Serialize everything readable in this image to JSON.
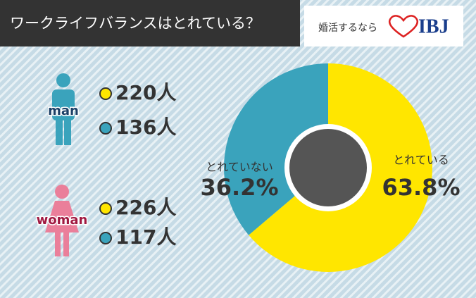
{
  "chart_data": {
    "type": "pie",
    "title": "ワークライフバランスはとれている？",
    "categories": [
      "とれている",
      "とれていない"
    ],
    "values": [
      63.8,
      36.2
    ],
    "value_labels": [
      "63.8%",
      "36.2%"
    ],
    "colors": [
      "#ffe600",
      "#3aa3bc"
    ],
    "donut": true,
    "groups": [
      {
        "name": "man",
        "counts": [
          "220人",
          "136人"
        ]
      },
      {
        "name": "woman",
        "counts": [
          "226人",
          "117人"
        ]
      }
    ]
  },
  "brand": {
    "tagline": "婚活するなら",
    "logo": "IBJ"
  }
}
